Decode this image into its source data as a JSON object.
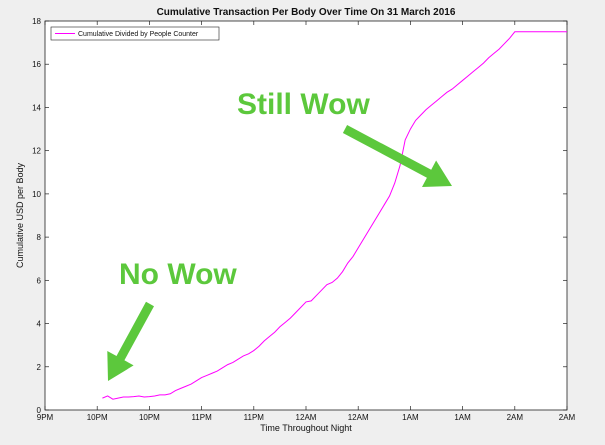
{
  "chart_data": {
    "type": "line",
    "title": "Cumulative Transaction Per Body Over Time On 31 March 2016",
    "xlabel": "Time Throughout Night",
    "ylabel": "Cumulative USD per Body",
    "ylim": [
      0,
      18
    ],
    "y_ticks": [
      0,
      2,
      4,
      6,
      8,
      10,
      12,
      14,
      16,
      18
    ],
    "xlim": [
      0,
      100
    ],
    "x_ticks": [
      {
        "value": 0,
        "label": "9PM"
      },
      {
        "value": 10,
        "label": "10PM"
      },
      {
        "value": 20,
        "label": "10PM"
      },
      {
        "value": 30,
        "label": "11PM"
      },
      {
        "value": 40,
        "label": "11PM"
      },
      {
        "value": 50,
        "label": "12AM"
      },
      {
        "value": 60,
        "label": "12AM"
      },
      {
        "value": 70,
        "label": "1AM"
      },
      {
        "value": 80,
        "label": "1AM"
      },
      {
        "value": 90,
        "label": "2AM"
      },
      {
        "value": 100,
        "label": "2AM"
      }
    ],
    "legend_position": "top-left",
    "series": [
      {
        "name": "Cumulative Divided by People Counter",
        "color": "#ff00ff",
        "x": [
          11,
          12,
          13,
          14,
          15,
          16,
          17,
          18,
          19,
          20,
          21,
          22,
          23,
          24,
          25,
          26,
          27,
          28,
          29,
          30,
          31,
          32,
          33,
          34,
          35,
          36,
          37,
          38,
          39,
          40,
          41,
          42,
          43,
          44,
          45,
          46,
          47,
          48,
          49,
          50,
          51,
          52,
          53,
          54,
          55,
          56,
          57,
          58,
          59,
          60,
          61,
          62,
          63,
          64,
          65,
          66,
          67,
          68,
          69,
          70,
          71,
          72,
          73,
          74,
          75,
          76,
          77,
          78,
          79,
          80,
          81,
          82,
          83,
          84,
          85,
          86,
          87,
          88,
          89,
          90,
          91,
          92,
          93,
          94,
          95,
          96,
          97,
          98,
          99,
          100
        ],
        "y": [
          0.55,
          0.65,
          0.5,
          0.55,
          0.6,
          0.6,
          0.62,
          0.65,
          0.6,
          0.62,
          0.65,
          0.7,
          0.7,
          0.75,
          0.9,
          1.0,
          1.1,
          1.2,
          1.35,
          1.5,
          1.6,
          1.7,
          1.8,
          1.95,
          2.1,
          2.2,
          2.35,
          2.5,
          2.6,
          2.75,
          2.95,
          3.2,
          3.4,
          3.6,
          3.85,
          4.05,
          4.25,
          4.5,
          4.75,
          5.0,
          5.05,
          5.3,
          5.55,
          5.8,
          5.9,
          6.1,
          6.4,
          6.8,
          7.1,
          7.5,
          7.9,
          8.3,
          8.7,
          9.1,
          9.5,
          9.9,
          10.5,
          11.3,
          12.5,
          13.0,
          13.4,
          13.65,
          13.9,
          14.1,
          14.3,
          14.5,
          14.7,
          14.85,
          15.05,
          15.25,
          15.45,
          15.65,
          15.85,
          16.05,
          16.3,
          16.5,
          16.7,
          16.95,
          17.2,
          17.5,
          17.5,
          17.5,
          17.5,
          17.5,
          17.5,
          17.5,
          17.5,
          17.5,
          17.5,
          17.5
        ],
        "x_end": 100
      }
    ],
    "annotations": [
      {
        "text": "No Wow",
        "color": "#5cc83c"
      },
      {
        "text": "Still Wow",
        "color": "#5cc83c"
      }
    ]
  }
}
